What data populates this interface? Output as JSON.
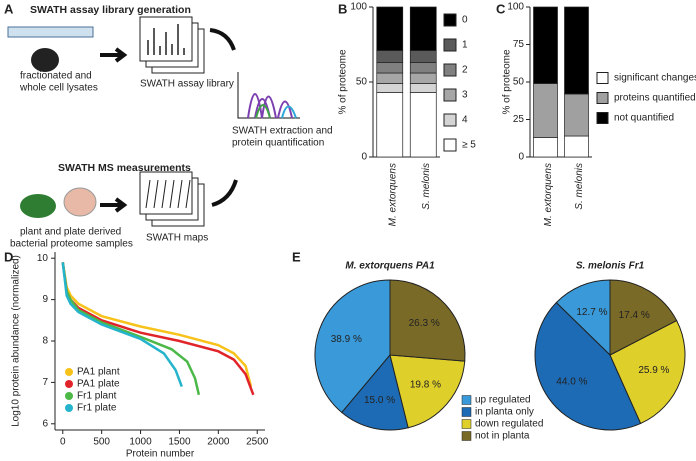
{
  "panel_labels": [
    "A",
    "B",
    "C",
    "D",
    "E"
  ],
  "diagram": {
    "top": {
      "title": "SWATH assay library generation",
      "input": [
        "fractionated and",
        "whole cell lysates"
      ],
      "output": "SWATH assay library"
    },
    "bottom": {
      "title": "SWATH MS measurements",
      "input": [
        "plant and plate derived",
        "bacterial proteome samples"
      ],
      "output": "SWATH maps"
    },
    "result": [
      "SWATH extraction and",
      "protein quantification"
    ]
  },
  "chart_data": [
    {
      "type": "stacked_bar",
      "ylabel": "% of proteome",
      "categories": [
        "M. extorquens",
        "S. melonis"
      ],
      "ylim": [
        0,
        100
      ],
      "yticks": [
        0,
        50,
        100
      ],
      "series": [
        {
          "name": "≥ 5",
          "color": "#ffffff",
          "values": [
            43,
            43
          ]
        },
        {
          "name": "4",
          "color": "#d4d4d4",
          "values": [
            6,
            6
          ]
        },
        {
          "name": "3",
          "color": "#a6a6a6",
          "values": [
            7,
            7
          ]
        },
        {
          "name": "2",
          "color": "#808080",
          "values": [
            7,
            7
          ]
        },
        {
          "name": "1",
          "color": "#5a5a5a",
          "values": [
            8,
            8
          ]
        },
        {
          "name": "0",
          "color": "#000000",
          "values": [
            29,
            29
          ]
        }
      ]
    },
    {
      "type": "stacked_bar",
      "ylabel": "% of proteome",
      "categories": [
        "M. extorquens",
        "S. melonis"
      ],
      "ylim": [
        0,
        100
      ],
      "yticks": [
        0,
        25,
        50,
        75,
        100
      ],
      "series": [
        {
          "name": "significant changes",
          "color": "#ffffff",
          "values": [
            13,
            14
          ]
        },
        {
          "name": "proteins quantified",
          "color": "#a0a0a0",
          "values": [
            36,
            28
          ]
        },
        {
          "name": "not quantified",
          "color": "#000000",
          "values": [
            51,
            58
          ]
        }
      ]
    },
    {
      "type": "line",
      "xlabel": "Protein number",
      "ylabel": "Log10 protein abundance (normalized)",
      "xlim": [
        -100,
        2600
      ],
      "xticks": [
        0,
        500,
        1000,
        1500,
        2000,
        2500
      ],
      "ylim": [
        5.85,
        10.15
      ],
      "yticks": [
        6,
        7,
        8,
        9,
        10
      ],
      "legend": "lower left",
      "series": [
        {
          "name": "PA1 plant",
          "color": "#f7c21a",
          "x": [
            0,
            50,
            100,
            200,
            500,
            1000,
            1500,
            2000,
            2200,
            2350,
            2420
          ],
          "values": [
            9.9,
            9.3,
            9.1,
            8.9,
            8.6,
            8.35,
            8.15,
            7.9,
            7.7,
            7.4,
            6.9
          ]
        },
        {
          "name": "PA1 plate",
          "color": "#e0242a",
          "x": [
            0,
            50,
            100,
            200,
            500,
            1000,
            1500,
            2000,
            2200,
            2350,
            2450
          ],
          "values": [
            9.9,
            9.2,
            9.0,
            8.8,
            8.5,
            8.2,
            8.0,
            7.75,
            7.55,
            7.2,
            6.7
          ]
        },
        {
          "name": "Fr1 plant",
          "color": "#4cb848",
          "x": [
            0,
            50,
            100,
            200,
            500,
            1000,
            1400,
            1600,
            1700,
            1750
          ],
          "values": [
            9.9,
            9.2,
            9.0,
            8.75,
            8.45,
            8.1,
            7.8,
            7.5,
            7.1,
            6.7
          ]
        },
        {
          "name": "Fr1 plate",
          "color": "#26b4cc",
          "x": [
            0,
            50,
            100,
            200,
            500,
            1000,
            1300,
            1450,
            1530
          ],
          "values": [
            9.9,
            9.1,
            8.9,
            8.7,
            8.4,
            8.05,
            7.7,
            7.3,
            6.9
          ]
        }
      ]
    },
    {
      "type": "pie",
      "categories": [
        "up regulated",
        "in planta only",
        "down regulated",
        "not in planta"
      ],
      "colors": [
        "#3a9ad9",
        "#1d6bb5",
        "#dfcf2b",
        "#7a6a28"
      ],
      "series": [
        {
          "name": "M. extorquens PA1",
          "values": [
            38.9,
            15.0,
            19.8,
            26.3
          ],
          "value_labels": [
            "38.9 %",
            "15.0 %",
            "19.8 %",
            "26.3 %"
          ]
        },
        {
          "name": "S. melonis Fr1",
          "values": [
            12.7,
            44.0,
            25.9,
            17.4
          ],
          "value_labels": [
            "12.7 %",
            "44.0 %",
            "25.9 %",
            "17.4 %"
          ]
        }
      ]
    }
  ]
}
